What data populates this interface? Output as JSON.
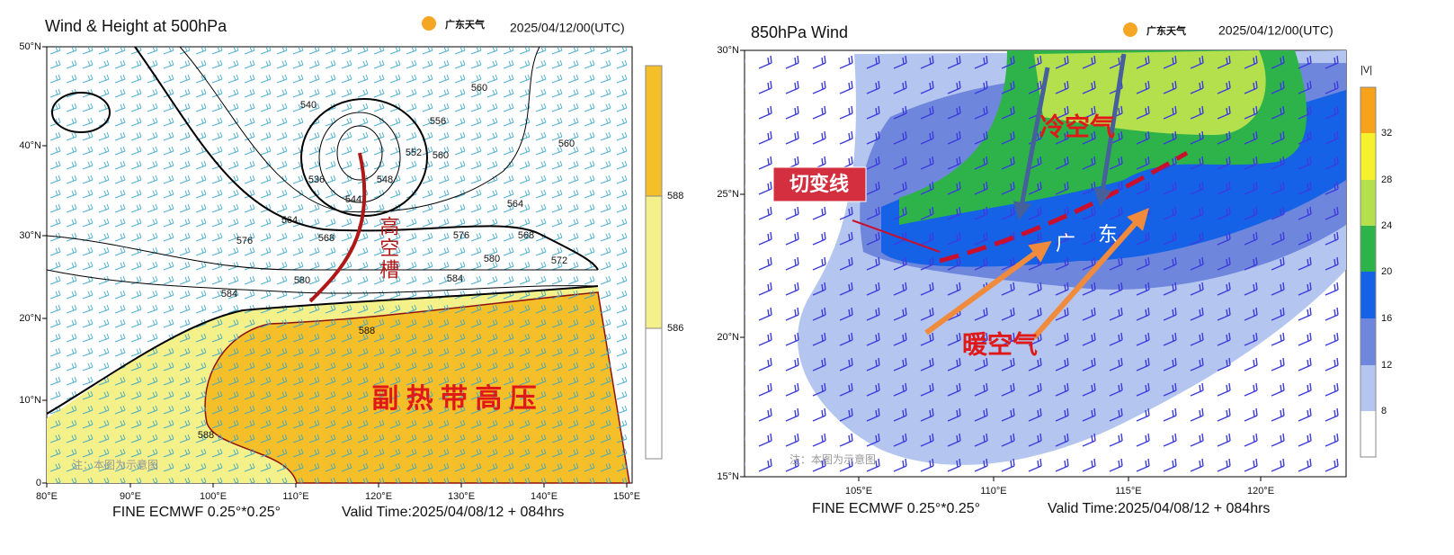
{
  "panels": [
    {
      "title": "Wind & Height at 500hPa",
      "logo": "广东天气",
      "date": "2025/04/12/00(UTC)",
      "y_ticks": [
        "50°N",
        "40°N",
        "30°N",
        "20°N",
        "10°N",
        "0"
      ],
      "x_ticks": [
        "80°E",
        "90°E",
        "100°E",
        "110°E",
        "120°E",
        "130°E",
        "140°E",
        "150°E"
      ],
      "colorbar_labels": [
        "588",
        "586"
      ],
      "contour_labels": [
        "540",
        "536",
        "544",
        "548",
        "552",
        "556",
        "560",
        "560",
        "560",
        "564",
        "564",
        "568",
        "568",
        "572",
        "576",
        "576",
        "580",
        "580",
        "584",
        "584",
        "588",
        "588"
      ],
      "annotations": [
        "高空槽",
        "副 热 带 高 压",
        "注：本图为示意图"
      ],
      "footer": [
        "FINE ECMWF 0.25°*0.25°",
        "Valid Time:2025/04/08/12 + 084hrs"
      ]
    },
    {
      "title": "850hPa Wind",
      "logo": "广东天气",
      "date": "2025/04/12/00(UTC)",
      "y_ticks": [
        "30°N",
        "25°N",
        "20°N",
        "15°N"
      ],
      "x_ticks": [
        "105°E",
        "110°E",
        "115°E",
        "120°E"
      ],
      "colorbar_title": "|V|",
      "colorbar_labels": [
        "32",
        "28",
        "24",
        "20",
        "16",
        "12",
        "8"
      ],
      "annotations": [
        "切变线",
        "冷空气",
        "暖空气",
        "广",
        "东",
        "注：本图为示意图"
      ],
      "footer": [
        "FINE ECMWF 0.25°*0.25°",
        "Valid Time:2025/04/08/12 + 084hrs"
      ]
    }
  ]
}
